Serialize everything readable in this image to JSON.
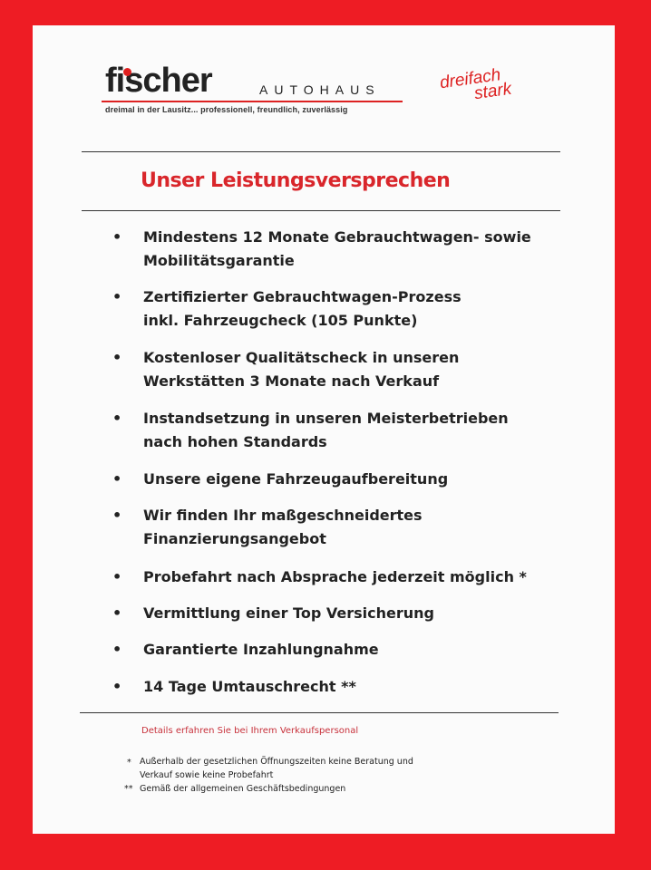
{
  "header": {
    "logo_text": "fischer",
    "logo_suffix": "AUTOHAUS",
    "tagline": "dreimal in der Lausitz... professionell, freundlich, zuverlässig",
    "slogan_line1": "dreifach",
    "slogan_line2": "stark"
  },
  "title": "Unser Leistungsversprechen",
  "items": [
    {
      "text": "Mindestens 12 Monate Gebrauchtwagen- sowie\nMobilitätsgarantie"
    },
    {
      "text": "Zertifizierter Gebrauchtwagen-Prozess\ninkl. Fahrzeugcheck (105 Punkte)"
    },
    {
      "text": "Kostenloser Qualitätscheck in unseren\nWerkstätten 3 Monate nach Verkauf"
    },
    {
      "text": "Instandsetzung in unseren Meisterbetrieben\n nach hohen Standards"
    },
    {
      "text": "Unsere eigene Fahrzeugaufbereitung"
    },
    {
      "text": "Wir finden Ihr maßgeschneidertes\nFinanzierungsangebot"
    },
    {
      "text": "Probefahrt nach Absprache jederzeit möglich *"
    },
    {
      "text": "Vermittlung einer Top Versicherung"
    },
    {
      "text": "Garantierte Inzahlungnahme"
    },
    {
      "text": "14 Tage Umtauschrecht **"
    }
  ],
  "bullet": "•",
  "details": "Details erfahren Sie bei Ihrem Verkaufspersonal",
  "footnotes": [
    {
      "mark": "*",
      "text": "Außerhalb der gesetzlichen Öffnungszeiten keine Beratung und\nVerkauf sowie keine Probefahrt"
    },
    {
      "mark": "**",
      "text": "Gemäß der allgemeinen Geschäftsbedingungen"
    }
  ],
  "colors": {
    "border": "#ee1c24",
    "accent": "#d9262b"
  }
}
